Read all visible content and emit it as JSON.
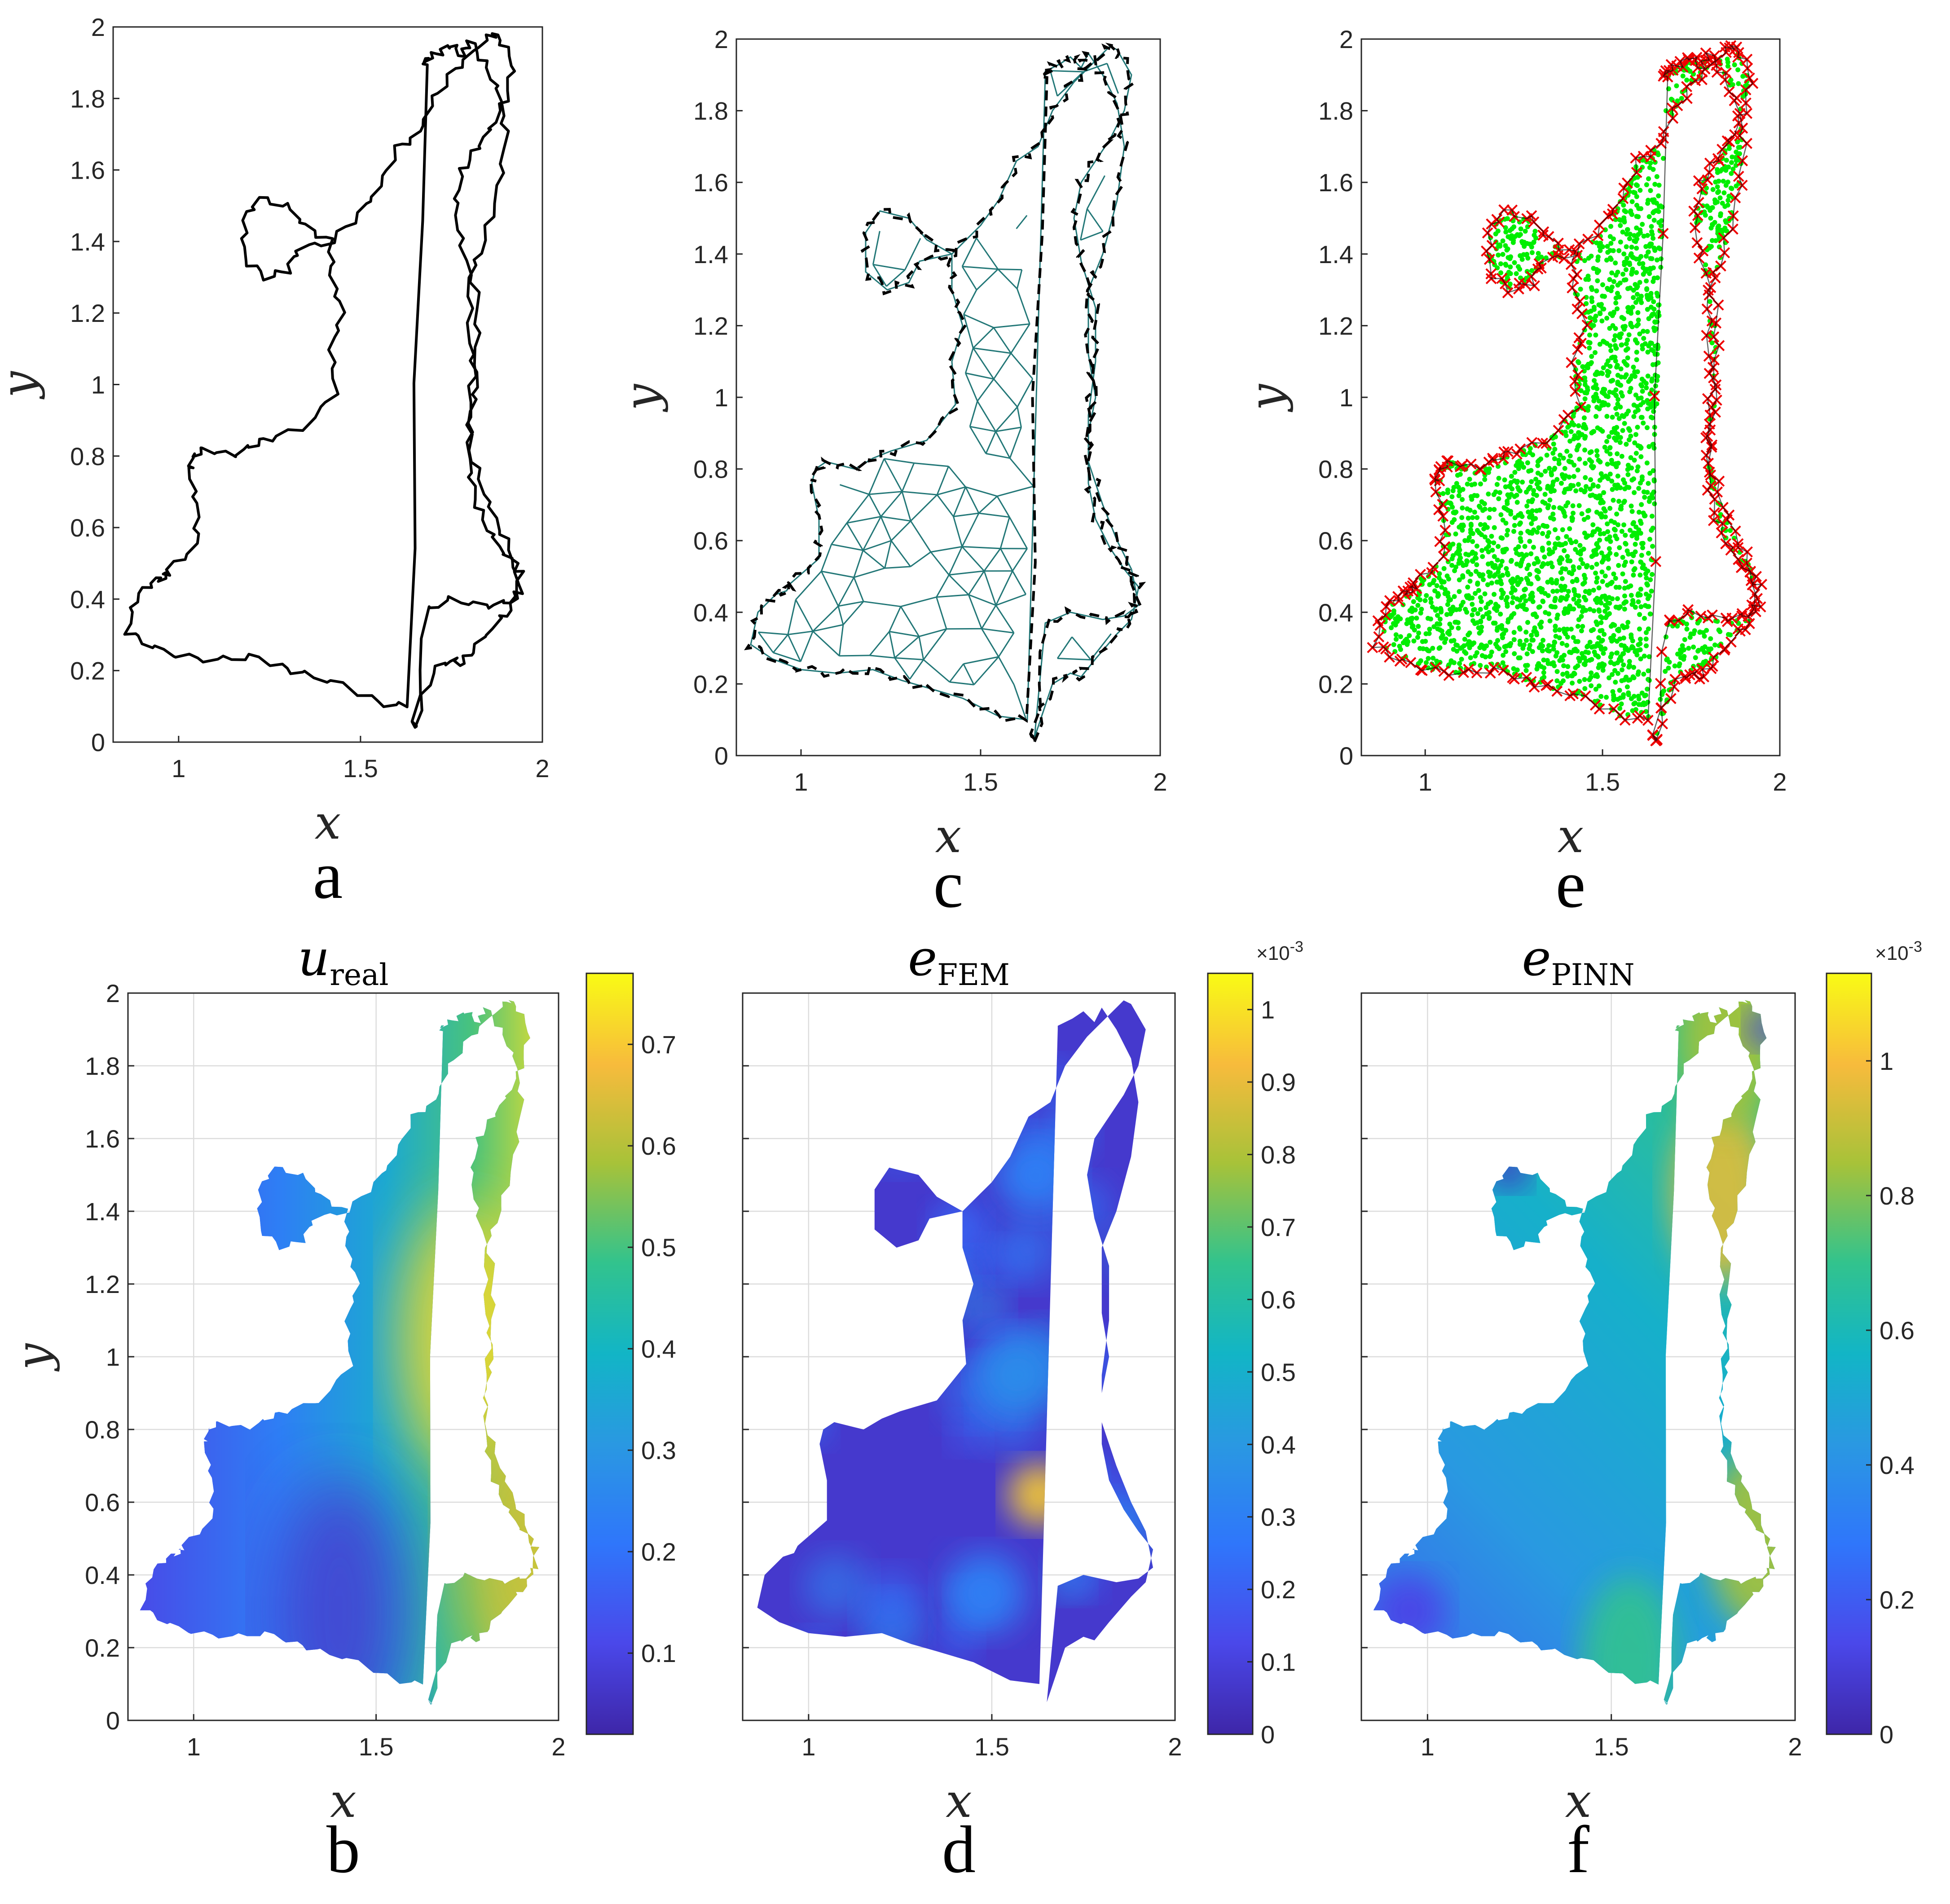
{
  "chart_data": [
    {
      "id": "a",
      "type": "line",
      "panel_label": "a",
      "title": "",
      "xlabel": "x",
      "ylabel": "y",
      "xlim": [
        0.82,
        2.0
      ],
      "ylim": [
        0,
        2
      ],
      "xticks": [
        "1",
        "1.5",
        "2"
      ],
      "yticks": [
        "0",
        "0.2",
        "0.4",
        "0.6",
        "0.8",
        "1",
        "1.2",
        "1.4",
        "1.6",
        "1.8",
        "2"
      ],
      "grid": false,
      "series": [
        {
          "style": "solid boundary",
          "color": "#000000",
          "x": [
            1.65,
            1.7,
            1.75,
            1.78,
            1.82,
            1.88,
            1.92,
            1.94,
            1.9,
            1.86,
            1.82,
            1.8,
            1.8,
            1.82,
            1.8,
            1.8,
            1.84,
            1.88,
            1.9,
            1.88,
            1.84,
            1.8,
            1.78,
            1.75,
            1.72,
            1.68,
            1.68,
            1.62,
            1.62,
            1.63,
            1.55,
            1.45,
            1.35,
            1.28,
            1.2,
            1.1,
            1.0,
            0.92,
            0.86,
            0.88,
            0.93,
            0.96,
            0.97,
            1.05,
            1.05,
            1.03,
            1.04,
            1.07,
            1.15,
            1.2,
            1.25,
            1.35,
            1.43,
            1.42,
            1.45,
            1.42,
            1.42,
            1.35,
            1.3,
            1.22,
            1.18,
            1.18,
            1.24,
            1.3,
            1.33,
            1.42,
            1.5,
            1.55,
            1.6,
            1.66,
            1.7,
            1.76,
            1.82,
            1.86,
            1.88,
            1.92,
            1.9,
            1.86,
            1.82,
            1.78,
            1.76,
            1.78,
            1.82,
            1.82,
            1.8,
            1.8,
            1.84,
            1.88,
            1.92,
            1.94,
            1.9,
            1.84,
            1.75,
            1.68,
            1.65
          ],
          "y": [
            0.05,
            0.2,
            0.23,
            0.22,
            0.27,
            0.34,
            0.38,
            0.47,
            0.52,
            0.58,
            0.66,
            0.76,
            0.9,
            1.0,
            1.12,
            1.3,
            1.4,
            1.55,
            1.7,
            1.82,
            1.9,
            1.96,
            1.92,
            1.95,
            1.93,
            1.91,
            1.9,
            0.0,
            0.0,
            0.1,
            0.11,
            0.16,
            0.19,
            0.21,
            0.24,
            0.23,
            0.24,
            0.27,
            0.31,
            0.4,
            0.45,
            0.46,
            0.48,
            0.55,
            0.66,
            0.76,
            0.8,
            0.82,
            0.8,
            0.83,
            0.85,
            0.88,
            0.98,
            1.1,
            1.2,
            1.3,
            1.4,
            1.44,
            1.5,
            1.52,
            1.46,
            1.35,
            1.3,
            1.32,
            1.38,
            1.4,
            1.48,
            1.55,
            1.66,
            1.7,
            1.8,
            1.88,
            1.94,
            1.98,
            1.97,
            1.9,
            1.8,
            1.72,
            1.66,
            1.6,
            1.5,
            1.38,
            1.25,
            1.1,
            0.95,
            0.82,
            0.7,
            0.6,
            0.52,
            0.42,
            0.39,
            0.38,
            0.4,
            0.37,
            0.05
          ]
        }
      ]
    },
    {
      "id": "c",
      "type": "line",
      "panel_label": "c",
      "title": "",
      "xlabel": "x",
      "ylabel": "y",
      "xlim": [
        0.82,
        2.0
      ],
      "ylim": [
        0,
        2
      ],
      "xticks": [
        "1",
        "1.5",
        "2"
      ],
      "yticks": [
        "0",
        "0.2",
        "0.4",
        "0.6",
        "0.8",
        "1",
        "1.2",
        "1.4",
        "1.6",
        "1.8",
        "2"
      ],
      "grid": false,
      "series": [
        {
          "style": "triangular mesh",
          "color": "#227777"
        },
        {
          "style": "dashed boundary",
          "color": "#000000"
        }
      ]
    },
    {
      "id": "e",
      "type": "scatter",
      "panel_label": "e",
      "title": "",
      "xlabel": "x",
      "ylabel": "y",
      "xlim": [
        0.82,
        2.0
      ],
      "ylim": [
        0,
        2
      ],
      "xticks": [
        "1",
        "1.5",
        "2"
      ],
      "yticks": [
        "0",
        "0.2",
        "0.4",
        "0.6",
        "0.8",
        "1",
        "1.2",
        "1.4",
        "1.6",
        "1.8",
        "2"
      ],
      "grid": false,
      "series": [
        {
          "style": "interior collocation points",
          "color": "#00ee00",
          "marker": "dot"
        },
        {
          "style": "boundary points",
          "color": "#ee0000",
          "marker": "x"
        }
      ]
    },
    {
      "id": "b",
      "type": "heatmap",
      "panel_label": "b",
      "title": "u",
      "title_sub": "real",
      "xlabel": "x",
      "ylabel": "y",
      "xlim": [
        0.82,
        2.0
      ],
      "ylim": [
        0,
        2
      ],
      "xticks": [
        "1",
        "1.5",
        "2"
      ],
      "yticks": [
        "0",
        "0.2",
        "0.4",
        "0.6",
        "0.8",
        "1",
        "1.2",
        "1.4",
        "1.6",
        "1.8",
        "2"
      ],
      "grid": true,
      "colorbar": {
        "range": [
          0.02,
          0.77
        ],
        "ticks": [
          "0.1",
          "0.2",
          "0.3",
          "0.4",
          "0.5",
          "0.6",
          "0.7"
        ],
        "tick_values": [
          0.1,
          0.2,
          0.3,
          0.4,
          0.5,
          0.6,
          0.7
        ],
        "exponent_label": ""
      },
      "hotspots": [
        {
          "x": 1.75,
          "y": 1.05,
          "value": 0.72
        },
        {
          "x": 1.9,
          "y": 0.48,
          "value": 0.62
        },
        {
          "x": 1.4,
          "y": 0.3,
          "value": 0.08
        }
      ]
    },
    {
      "id": "d",
      "type": "heatmap",
      "panel_label": "d",
      "title": "e",
      "title_sub": "FEM",
      "xlabel": "x",
      "ylabel": "y",
      "xlim": [
        0.82,
        2.0
      ],
      "ylim": [
        0,
        2
      ],
      "xticks": [
        "1",
        "1.5",
        "2"
      ],
      "yticks": [],
      "grid": true,
      "colorbar": {
        "range": [
          0,
          1.05
        ],
        "ticks": [
          "0",
          "0.1",
          "0.2",
          "0.3",
          "0.4",
          "0.5",
          "0.6",
          "0.7",
          "0.8",
          "0.9",
          "1"
        ],
        "tick_values": [
          0,
          0.1,
          0.2,
          0.3,
          0.4,
          0.5,
          0.6,
          0.7,
          0.8,
          0.9,
          1.0
        ],
        "exponent_label": "×10",
        "exponent_power": "-3"
      },
      "hotspots": [
        {
          "x": 1.63,
          "y": 0.62,
          "value": 0.95
        },
        {
          "x": 1.57,
          "y": 0.95,
          "value": 0.35
        },
        {
          "x": 1.62,
          "y": 1.5,
          "value": 0.3
        },
        {
          "x": 1.48,
          "y": 0.35,
          "value": 0.3
        }
      ]
    },
    {
      "id": "f",
      "type": "heatmap",
      "panel_label": "f",
      "title": "e",
      "title_sub": "PINN",
      "xlabel": "x",
      "ylabel": "y",
      "xlim": [
        0.82,
        2.0
      ],
      "ylim": [
        0,
        2
      ],
      "xticks": [
        "1",
        "1.5",
        "2"
      ],
      "yticks": [],
      "grid": true,
      "colorbar": {
        "range": [
          0,
          1.13
        ],
        "ticks": [
          "0",
          "0.2",
          "0.4",
          "0.6",
          "0.8",
          "1"
        ],
        "tick_values": [
          0,
          0.2,
          0.4,
          0.6,
          0.8,
          1.0
        ],
        "exponent_label": "×10",
        "exponent_power": "-3"
      },
      "hotspots": [
        {
          "x": 1.8,
          "y": 1.45,
          "value": 0.95
        },
        {
          "x": 1.82,
          "y": 1.88,
          "value": 0.85
        },
        {
          "x": 1.9,
          "y": 0.5,
          "value": 0.85
        },
        {
          "x": 1.55,
          "y": 0.15,
          "value": 0.7
        }
      ]
    }
  ]
}
